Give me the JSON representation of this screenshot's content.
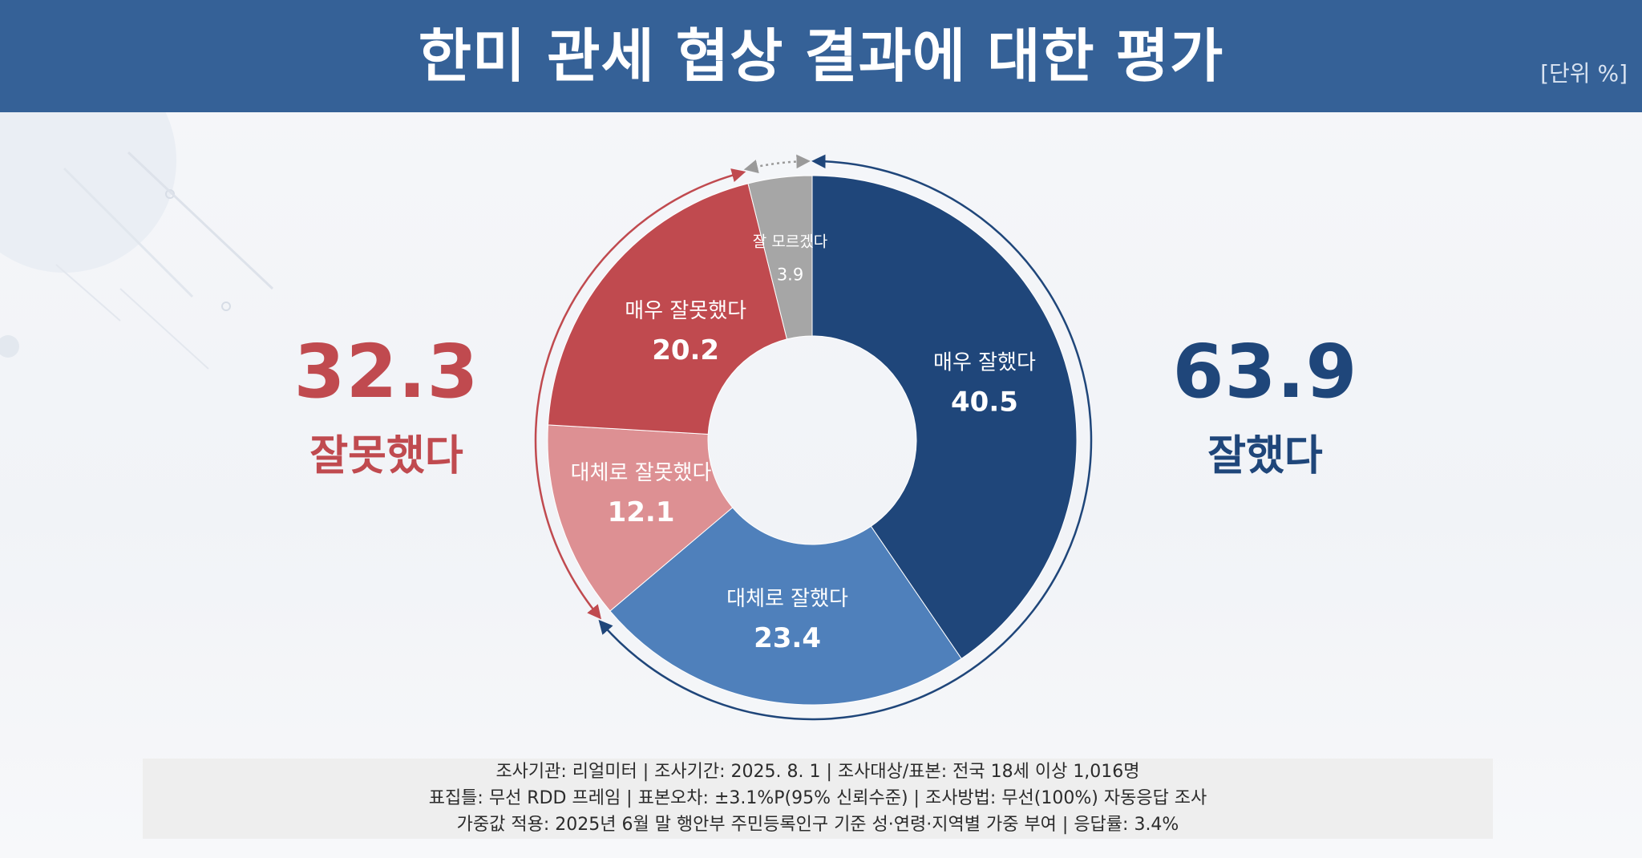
{
  "header": {
    "title": "한미 관세 협상 결과에 대한 평가",
    "unit": "[단위 %]"
  },
  "summary": {
    "negative_value": "32.3",
    "negative_label": "잘못했다",
    "positive_value": "63.9",
    "positive_label": "잘했다"
  },
  "colors": {
    "header": "#356197",
    "positive_dark": "#1f467a",
    "positive_light": "#4f80bb",
    "negative_dark": "#c04a4f",
    "negative_light": "#dd9093",
    "unknown": "#a6a6a6"
  },
  "chart_data": {
    "type": "pie",
    "title": "한미 관세 협상 결과에 대한 평가",
    "unit": "%",
    "slices": [
      {
        "label": "매우 잘했다",
        "value": 40.5,
        "color": "#1f467a"
      },
      {
        "label": "대체로 잘했다",
        "value": 23.4,
        "color": "#4f80bb"
      },
      {
        "label": "대체로 잘못했다",
        "value": 12.1,
        "color": "#dd9093"
      },
      {
        "label": "매우 잘못했다",
        "value": 20.2,
        "color": "#c04a4f"
      },
      {
        "label": "잘 모르겠다",
        "value": 3.9,
        "color": "#a6a6a6"
      }
    ],
    "groups": [
      {
        "label": "잘했다",
        "value": 63.9
      },
      {
        "label": "잘못했다",
        "value": 32.3
      }
    ]
  },
  "footer": {
    "line1": "조사기관: 리얼미터  |  조사기간: 2025. 8. 1 | 조사대상/표본: 전국 18세 이상 1,016명",
    "line2": "표집틀: 무선 RDD 프레임 | 표본오차: ±3.1%P(95% 신뢰수준) | 조사방법: 무선(100%) 자동응답 조사",
    "line3": "가중값 적용: 2025년 6월 말 행안부 주민등록인구 기준 성·연령·지역별 가중 부여 | 응답률: 3.4%"
  }
}
